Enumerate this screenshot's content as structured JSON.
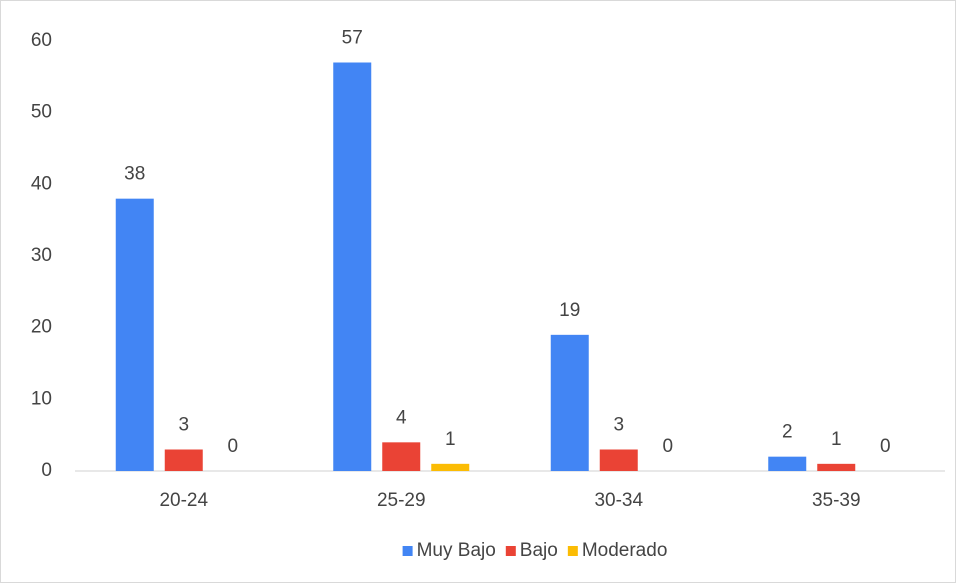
{
  "chart_data": {
    "type": "bar",
    "categories": [
      "20-24",
      "25-29",
      "30-34",
      "35-39"
    ],
    "series": [
      {
        "name": "Muy Bajo",
        "color": "#4285f4",
        "values": [
          38,
          57,
          19,
          2
        ]
      },
      {
        "name": "Bajo",
        "color": "#ea4335",
        "values": [
          3,
          4,
          3,
          1
        ]
      },
      {
        "name": "Moderado",
        "color": "#fbbc04",
        "values": [
          0,
          1,
          0,
          0
        ]
      }
    ],
    "ylim": [
      0,
      60
    ],
    "yticks": [
      0,
      10,
      20,
      30,
      40,
      50,
      60
    ],
    "grid": false,
    "legend": "bottom"
  }
}
